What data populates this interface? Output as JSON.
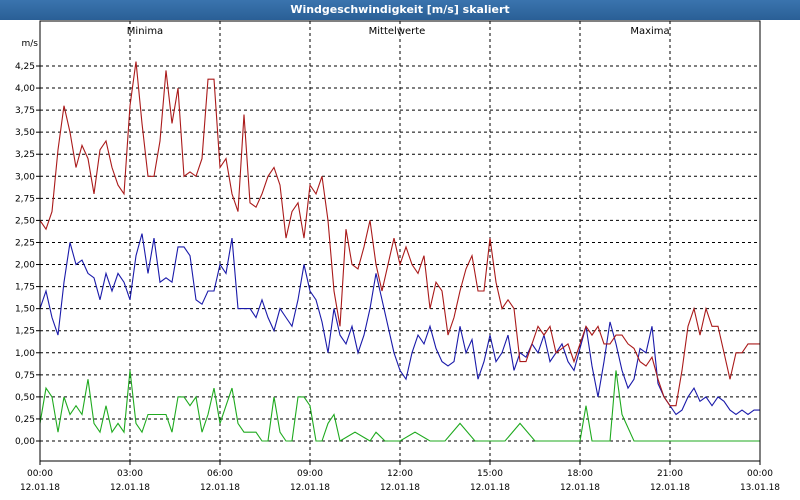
{
  "window": {
    "title": "Windgeschwindigkeit [m/s] skaliert"
  },
  "chart_data": {
    "type": "line",
    "title": "Windgeschwindigkeit [m/s] skaliert",
    "y_unit": "m/s",
    "ylim": [
      0,
      4.5
    ],
    "y_ticks": [
      "0,00",
      "0,25",
      "0,50",
      "0,75",
      "1,00",
      "1,25",
      "1,50",
      "1,75",
      "2,00",
      "2,25",
      "2,50",
      "2,75",
      "3,00",
      "3,25",
      "3,50",
      "3,75",
      "4,00",
      "4,25"
    ],
    "x_ticks": [
      {
        "time": "00:00",
        "date": "12.01.18"
      },
      {
        "time": "03:00",
        "date": "12.01.18"
      },
      {
        "time": "06:00",
        "date": "12.01.18"
      },
      {
        "time": "09:00",
        "date": "12.01.18"
      },
      {
        "time": "12:00",
        "date": "12.01.18"
      },
      {
        "time": "15:00",
        "date": "12.01.18"
      },
      {
        "time": "18:00",
        "date": "12.01.18"
      },
      {
        "time": "21:00",
        "date": "12.01.18"
      },
      {
        "time": "00:00",
        "date": "13.01.18"
      }
    ],
    "x_range_hours": [
      0,
      24
    ],
    "grid": true,
    "legend_position": "top",
    "series": [
      {
        "name": "Minima",
        "color": "#1faa1f",
        "x": [
          0,
          0.2,
          0.4,
          0.6,
          0.8,
          1.0,
          1.2,
          1.4,
          1.6,
          1.8,
          2.0,
          2.2,
          2.4,
          2.6,
          2.8,
          3.0,
          3.2,
          3.4,
          3.6,
          3.8,
          4.0,
          4.2,
          4.4,
          4.6,
          4.8,
          5.0,
          5.2,
          5.4,
          5.6,
          5.8,
          6.0,
          6.2,
          6.4,
          6.6,
          6.8,
          7.0,
          7.2,
          7.4,
          7.6,
          7.8,
          8.0,
          8.2,
          8.4,
          8.6,
          8.8,
          9.0,
          9.2,
          9.4,
          9.6,
          9.8,
          10.0,
          10.5,
          11.0,
          11.2,
          11.5,
          12.0,
          12.5,
          13.0,
          13.2,
          13.5,
          14.0,
          14.5,
          15.0,
          15.2,
          15.5,
          16.0,
          16.5,
          17.0,
          17.3,
          17.5,
          18.0,
          18.2,
          18.4,
          18.8,
          19.0,
          19.2,
          19.4,
          19.8,
          20.0,
          21.0,
          22.0,
          23.0,
          24.0
        ],
        "values": [
          0.2,
          0.6,
          0.5,
          0.1,
          0.5,
          0.3,
          0.4,
          0.3,
          0.7,
          0.2,
          0.1,
          0.4,
          0.1,
          0.2,
          0.1,
          0.8,
          0.2,
          0.1,
          0.3,
          0.3,
          0.3,
          0.3,
          0.1,
          0.5,
          0.5,
          0.4,
          0.5,
          0.1,
          0.3,
          0.6,
          0.2,
          0.4,
          0.6,
          0.2,
          0.1,
          0.1,
          0.1,
          0.0,
          0.0,
          0.5,
          0.1,
          0.0,
          0.0,
          0.5,
          0.5,
          0.4,
          0.0,
          0.0,
          0.2,
          0.3,
          0.0,
          0.1,
          0.0,
          0.1,
          0.0,
          0.0,
          0.1,
          0.0,
          0.0,
          0.0,
          0.2,
          0.0,
          0.0,
          0.0,
          0.0,
          0.2,
          0.0,
          0.0,
          0.0,
          0.0,
          0.0,
          0.4,
          0.0,
          0.0,
          0.0,
          0.8,
          0.3,
          0.0,
          0.0,
          0.0,
          0.0,
          0.0,
          0.0
        ]
      },
      {
        "name": "Mittelwerte",
        "color": "#1a1aaa",
        "x": [
          0,
          0.2,
          0.4,
          0.6,
          0.8,
          1.0,
          1.2,
          1.4,
          1.6,
          1.8,
          2.0,
          2.2,
          2.4,
          2.6,
          2.8,
          3.0,
          3.2,
          3.4,
          3.6,
          3.8,
          4.0,
          4.2,
          4.4,
          4.6,
          4.8,
          5.0,
          5.2,
          5.4,
          5.6,
          5.8,
          6.0,
          6.2,
          6.4,
          6.6,
          6.8,
          7.0,
          7.2,
          7.4,
          7.6,
          7.8,
          8.0,
          8.2,
          8.4,
          8.6,
          8.8,
          9.0,
          9.2,
          9.4,
          9.6,
          9.8,
          10.0,
          10.2,
          10.4,
          10.6,
          10.8,
          11.0,
          11.2,
          11.4,
          11.6,
          11.8,
          12.0,
          12.2,
          12.4,
          12.6,
          12.8,
          13.0,
          13.2,
          13.4,
          13.6,
          13.8,
          14.0,
          14.2,
          14.4,
          14.6,
          14.8,
          15.0,
          15.2,
          15.4,
          15.6,
          15.8,
          16.0,
          16.2,
          16.4,
          16.6,
          16.8,
          17.0,
          17.2,
          17.4,
          17.6,
          17.8,
          18.0,
          18.2,
          18.4,
          18.6,
          18.8,
          19.0,
          19.2,
          19.4,
          19.6,
          19.8,
          20.0,
          20.2,
          20.4,
          20.6,
          20.8,
          21.0,
          21.2,
          21.4,
          21.6,
          21.8,
          22.0,
          22.2,
          22.4,
          22.6,
          22.8,
          23.0,
          23.2,
          23.4,
          23.6,
          23.8,
          24.0
        ],
        "values": [
          1.5,
          1.7,
          1.4,
          1.2,
          1.8,
          2.25,
          2.0,
          2.05,
          1.9,
          1.85,
          1.6,
          1.9,
          1.7,
          1.9,
          1.8,
          1.6,
          2.1,
          2.35,
          1.9,
          2.3,
          1.8,
          1.85,
          1.8,
          2.2,
          2.2,
          2.1,
          1.6,
          1.55,
          1.7,
          1.7,
          2.0,
          1.9,
          2.3,
          1.5,
          1.5,
          1.5,
          1.4,
          1.6,
          1.4,
          1.25,
          1.5,
          1.4,
          1.3,
          1.6,
          2.0,
          1.7,
          1.6,
          1.35,
          1.0,
          1.5,
          1.2,
          1.1,
          1.3,
          1.0,
          1.2,
          1.5,
          1.9,
          1.6,
          1.3,
          1.0,
          0.8,
          0.7,
          1.0,
          1.2,
          1.1,
          1.3,
          1.05,
          0.9,
          0.85,
          0.9,
          1.3,
          1.0,
          1.15,
          0.7,
          0.9,
          1.2,
          0.9,
          1.0,
          1.2,
          0.8,
          1.0,
          0.95,
          1.1,
          1.0,
          1.2,
          0.9,
          1.0,
          1.1,
          0.9,
          0.8,
          1.05,
          1.3,
          0.85,
          0.5,
          0.9,
          1.35,
          1.1,
          0.8,
          0.6,
          0.7,
          1.05,
          1.0,
          1.3,
          0.65,
          0.5,
          0.4,
          0.3,
          0.35,
          0.5,
          0.6,
          0.45,
          0.5,
          0.4,
          0.5,
          0.45,
          0.35,
          0.3,
          0.35,
          0.3,
          0.35,
          0.35
        ],
        "trim_note": ""
      },
      {
        "name": "Maxima",
        "color": "#aa1a1a",
        "x": [
          0,
          0.2,
          0.4,
          0.6,
          0.8,
          1.0,
          1.2,
          1.4,
          1.6,
          1.8,
          2.0,
          2.2,
          2.4,
          2.6,
          2.8,
          3.0,
          3.2,
          3.4,
          3.6,
          3.8,
          4.0,
          4.2,
          4.4,
          4.6,
          4.8,
          5.0,
          5.2,
          5.4,
          5.6,
          5.8,
          6.0,
          6.2,
          6.4,
          6.6,
          6.8,
          7.0,
          7.2,
          7.4,
          7.6,
          7.8,
          8.0,
          8.2,
          8.4,
          8.6,
          8.8,
          9.0,
          9.2,
          9.4,
          9.6,
          9.8,
          10.0,
          10.2,
          10.4,
          10.6,
          10.8,
          11.0,
          11.2,
          11.4,
          11.6,
          11.8,
          12.0,
          12.2,
          12.4,
          12.6,
          12.8,
          13.0,
          13.2,
          13.4,
          13.6,
          13.8,
          14.0,
          14.2,
          14.4,
          14.6,
          14.8,
          15.0,
          15.2,
          15.4,
          15.6,
          15.8,
          16.0,
          16.2,
          16.4,
          16.6,
          16.8,
          17.0,
          17.2,
          17.4,
          17.6,
          17.8,
          18.0,
          18.2,
          18.4,
          18.6,
          18.8,
          19.0,
          19.2,
          19.4,
          19.6,
          19.8,
          20.0,
          20.2,
          20.4,
          20.6,
          20.8,
          21.0,
          21.2,
          21.4,
          21.6,
          21.8,
          22.0,
          22.2,
          22.4,
          22.6,
          22.8,
          23.0,
          23.2,
          23.4,
          23.6,
          23.8,
          24.0
        ],
        "values": [
          2.5,
          2.4,
          2.6,
          3.3,
          3.8,
          3.5,
          3.1,
          3.35,
          3.2,
          2.8,
          3.3,
          3.4,
          3.1,
          2.9,
          2.8,
          3.8,
          4.3,
          3.6,
          3.0,
          3.0,
          3.4,
          4.2,
          3.6,
          4.0,
          3.0,
          3.05,
          3.0,
          3.2,
          4.1,
          4.1,
          3.1,
          3.2,
          2.8,
          2.6,
          3.7,
          2.7,
          2.65,
          2.8,
          3.0,
          3.1,
          2.9,
          2.3,
          2.6,
          2.7,
          2.3,
          2.9,
          2.8,
          3.0,
          2.5,
          1.7,
          1.3,
          2.4,
          2.0,
          1.95,
          2.2,
          2.5,
          2.0,
          1.7,
          2.0,
          2.3,
          2.0,
          2.2,
          2.0,
          1.9,
          2.1,
          1.5,
          1.8,
          1.7,
          1.2,
          1.4,
          1.7,
          1.95,
          2.1,
          1.7,
          1.7,
          2.3,
          1.8,
          1.5,
          1.6,
          1.5,
          0.9,
          0.9,
          1.1,
          1.3,
          1.2,
          1.3,
          1.0,
          1.05,
          1.1,
          0.9,
          1.1,
          1.3,
          1.2,
          1.3,
          1.1,
          1.1,
          1.2,
          1.2,
          1.1,
          1.05,
          0.9,
          0.85,
          0.95,
          0.7,
          0.5,
          0.4,
          0.4,
          0.8,
          1.3,
          1.5,
          1.2,
          1.5,
          1.3,
          1.3,
          1.0,
          0.7,
          1.0,
          1.0,
          1.1,
          1.1,
          1.1
        ]
      }
    ]
  }
}
